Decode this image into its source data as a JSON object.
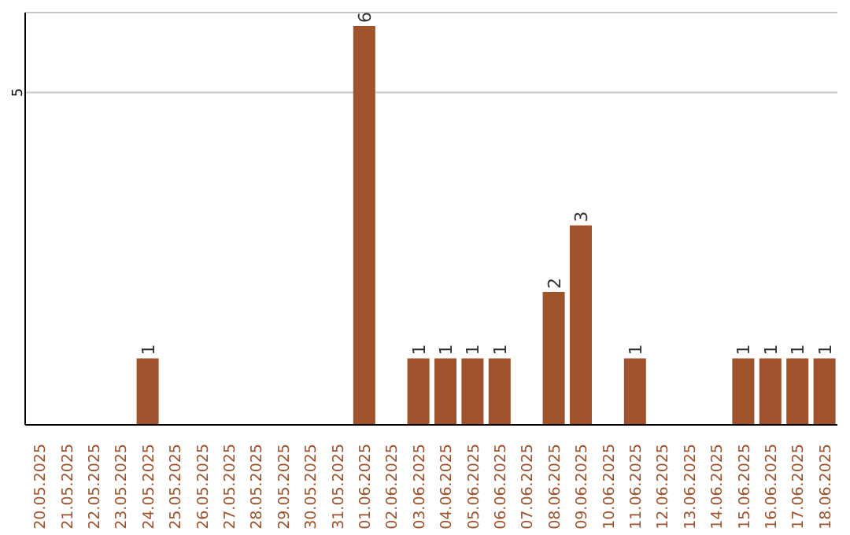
{
  "chart_data": {
    "type": "bar",
    "categories": [
      "20.05.2025",
      "21.05.2025",
      "22.05.2025",
      "23.05.2025",
      "24.05.2025",
      "25.05.2025",
      "26.05.2025",
      "27.05.2025",
      "28.05.2025",
      "29.05.2025",
      "30.05.2025",
      "31.05.2025",
      "01.06.2025",
      "02.06.2025",
      "03.06.2025",
      "04.06.2025",
      "05.06.2025",
      "06.06.2025",
      "07.06.2025",
      "08.06.2025",
      "09.06.2025",
      "10.06.2025",
      "11.06.2025",
      "12.06.2025",
      "13.06.2025",
      "14.06.2025",
      "15.06.2025",
      "16.06.2025",
      "17.06.2025",
      "18.06.2025"
    ],
    "values": [
      0,
      0,
      0,
      0,
      1,
      0,
      0,
      0,
      0,
      0,
      0,
      0,
      6,
      0,
      1,
      1,
      1,
      1,
      0,
      2,
      3,
      0,
      1,
      0,
      0,
      0,
      1,
      1,
      1,
      1
    ],
    "value_labels": [
      null,
      null,
      null,
      null,
      "1",
      null,
      null,
      null,
      null,
      null,
      null,
      null,
      "6",
      null,
      "1",
      "1",
      "1",
      "1",
      null,
      "2",
      "3",
      null,
      "1",
      null,
      null,
      null,
      "1",
      "1",
      "1",
      "1"
    ],
    "color": "#a0522d",
    "ylim": [
      0,
      6.2
    ],
    "yticks": [
      5
    ],
    "grid": "y"
  }
}
